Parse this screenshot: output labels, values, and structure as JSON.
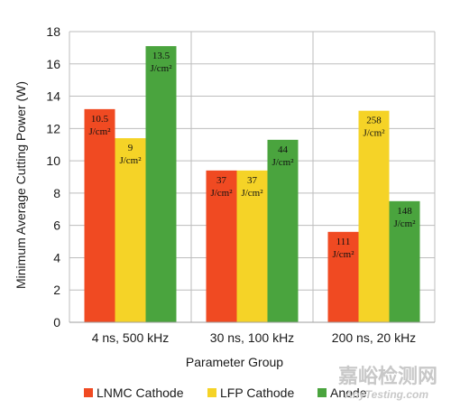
{
  "chart_data": {
    "type": "bar",
    "xlabel": "Parameter Group",
    "ylabel": "Minimum Average Cutting Power (W)",
    "ylim": [
      0,
      18
    ],
    "yticks": [
      0,
      2,
      4,
      6,
      8,
      10,
      12,
      14,
      16,
      18
    ],
    "grid": true,
    "legend_position": "bottom",
    "categories": [
      "4 ns, 500 kHz",
      "30 ns, 100 kHz",
      "200 ns, 20 kHz"
    ],
    "series": [
      {
        "name": "LNMC Cathode",
        "color": "#f04a22",
        "values": [
          13.2,
          9.4,
          5.6
        ],
        "labels": [
          {
            "value": "10.5",
            "unit": "J/cm²"
          },
          {
            "value": "37",
            "unit": "J/cm²"
          },
          {
            "value": "111",
            "unit": "J/cm²"
          }
        ]
      },
      {
        "name": "LFP Cathode",
        "color": "#f5d327",
        "values": [
          11.4,
          9.4,
          13.1
        ],
        "labels": [
          {
            "value": "9",
            "unit": "J/cm²"
          },
          {
            "value": "37",
            "unit": "J/cm²"
          },
          {
            "value": "258",
            "unit": "J/cm²"
          }
        ]
      },
      {
        "name": "Anode",
        "color": "#4aa43e",
        "values": [
          17.1,
          11.3,
          7.5
        ],
        "labels": [
          {
            "value": "13.5",
            "unit": "J/cm²"
          },
          {
            "value": "44",
            "unit": "J/cm²"
          },
          {
            "value": "148",
            "unit": "J/cm²"
          }
        ]
      }
    ]
  },
  "watermark": {
    "cn": "嘉峪检测网",
    "en": "AnyTesting.com"
  }
}
